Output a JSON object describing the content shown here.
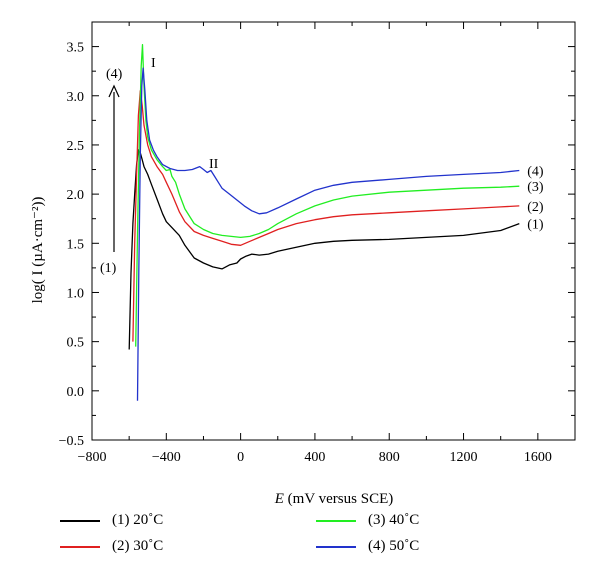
{
  "chart_data": {
    "type": "line",
    "xlabel_italic": "E",
    "xlabel_rest": " (mV versus SCE)",
    "ylabel": "log( I (µA·cm⁻²))",
    "xlim": [
      -800,
      1800
    ],
    "ylim": [
      -0.5,
      3.75
    ],
    "xticks": [
      -800,
      -400,
      0,
      400,
      800,
      1200,
      1600
    ],
    "xtick_labels": [
      "−800",
      "−400",
      "0",
      "400",
      "800",
      "1200",
      "1600"
    ],
    "yticks": [
      -0.5,
      0.0,
      0.5,
      1.0,
      1.5,
      2.0,
      2.5,
      3.0,
      3.5
    ],
    "ytick_labels": [
      "−0.5",
      "0.0",
      "0.5",
      "1.0",
      "1.5",
      "2.0",
      "2.5",
      "3.0",
      "3.5"
    ],
    "annotations": {
      "peak_I": "I",
      "peak_II": "II",
      "arrow_top": "(4)",
      "arrow_bottom": "(1)"
    },
    "series": [
      {
        "name": "(1) 20˚C",
        "end_label": "(1)",
        "color": "#000000",
        "x": [
          -600,
          -590,
          -580,
          -570,
          -560,
          -550,
          -540,
          -530,
          -520,
          -500,
          -480,
          -450,
          -420,
          -400,
          -370,
          -330,
          -300,
          -250,
          -200,
          -150,
          -100,
          -60,
          -20,
          0,
          30,
          60,
          100,
          150,
          200,
          300,
          400,
          500,
          600,
          800,
          1000,
          1200,
          1400,
          1500
        ],
        "y": [
          0.42,
          1.2,
          1.7,
          2.0,
          2.3,
          2.45,
          2.42,
          2.35,
          2.28,
          2.2,
          2.1,
          1.95,
          1.8,
          1.72,
          1.66,
          1.58,
          1.48,
          1.35,
          1.3,
          1.26,
          1.24,
          1.28,
          1.3,
          1.34,
          1.37,
          1.39,
          1.38,
          1.39,
          1.42,
          1.46,
          1.5,
          1.52,
          1.53,
          1.54,
          1.56,
          1.58,
          1.63,
          1.7
        ]
      },
      {
        "name": "(2) 30˚C",
        "end_label": "(2)",
        "color": "#e02020",
        "x": [
          -580,
          -570,
          -560,
          -550,
          -540,
          -530,
          -520,
          -500,
          -480,
          -450,
          -420,
          -400,
          -370,
          -330,
          -300,
          -250,
          -200,
          -150,
          -100,
          -50,
          0,
          50,
          100,
          150,
          200,
          300,
          400,
          500,
          600,
          800,
          1000,
          1200,
          1400,
          1500
        ],
        "y": [
          0.5,
          1.5,
          2.2,
          2.8,
          3.05,
          2.9,
          2.7,
          2.5,
          2.38,
          2.28,
          2.2,
          2.12,
          2.0,
          1.82,
          1.72,
          1.62,
          1.58,
          1.55,
          1.52,
          1.49,
          1.48,
          1.52,
          1.56,
          1.6,
          1.64,
          1.7,
          1.74,
          1.77,
          1.79,
          1.81,
          1.83,
          1.85,
          1.87,
          1.88
        ]
      },
      {
        "name": "(3) 40˚C",
        "end_label": "(3)",
        "color": "#22ee22",
        "x": [
          -565,
          -555,
          -545,
          -535,
          -528,
          -520,
          -510,
          -500,
          -480,
          -450,
          -420,
          -400,
          -380,
          -370,
          -350,
          -330,
          -300,
          -250,
          -200,
          -150,
          -100,
          -50,
          0,
          50,
          100,
          150,
          200,
          300,
          400,
          500,
          600,
          800,
          1000,
          1200,
          1400,
          1500
        ],
        "y": [
          0.45,
          1.6,
          2.6,
          3.3,
          3.52,
          3.1,
          2.75,
          2.58,
          2.45,
          2.35,
          2.28,
          2.24,
          2.25,
          2.18,
          2.12,
          2.0,
          1.85,
          1.7,
          1.64,
          1.6,
          1.58,
          1.57,
          1.56,
          1.57,
          1.6,
          1.64,
          1.7,
          1.8,
          1.88,
          1.94,
          1.98,
          2.02,
          2.04,
          2.06,
          2.07,
          2.08
        ]
      },
      {
        "name": "(4) 50˚C",
        "end_label": "(4)",
        "color": "#2233cc",
        "x": [
          -555,
          -548,
          -540,
          -532,
          -525,
          -515,
          -505,
          -490,
          -470,
          -450,
          -420,
          -380,
          -340,
          -300,
          -260,
          -220,
          -200,
          -180,
          -160,
          -140,
          -120,
          -100,
          -60,
          -20,
          20,
          60,
          100,
          140,
          200,
          300,
          400,
          500,
          600,
          800,
          1000,
          1200,
          1400,
          1500
        ],
        "y": [
          -0.1,
          1.2,
          2.4,
          3.1,
          3.28,
          3.05,
          2.75,
          2.55,
          2.45,
          2.38,
          2.3,
          2.26,
          2.24,
          2.24,
          2.25,
          2.28,
          2.25,
          2.22,
          2.24,
          2.18,
          2.12,
          2.06,
          2.0,
          1.94,
          1.88,
          1.83,
          1.8,
          1.81,
          1.86,
          1.95,
          2.04,
          2.09,
          2.12,
          2.15,
          2.18,
          2.2,
          2.22,
          2.24
        ]
      }
    ],
    "legend_placement": "bottom"
  }
}
